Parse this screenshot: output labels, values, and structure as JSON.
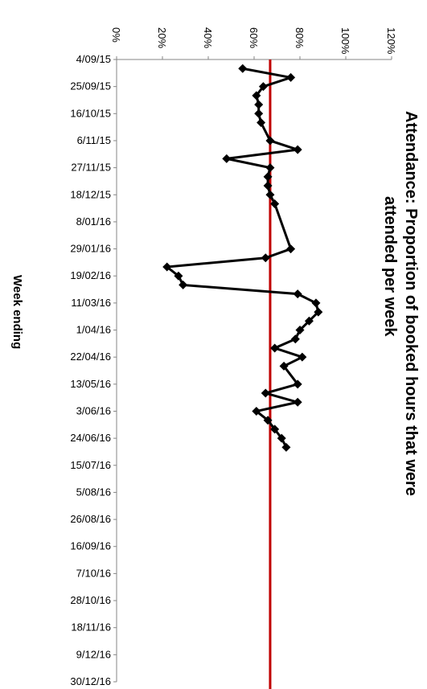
{
  "chart_data": {
    "type": "line",
    "orientation": "rotated-90-clockwise",
    "title_lines": [
      "Attendance:  Proportion of booked hours that were",
      "attended per week"
    ],
    "xlabel": "Week ending",
    "ylabel": "",
    "x_tick_labels": [
      "4/09/15",
      "25/09/15",
      "16/10/15",
      "6/11/15",
      "27/11/15",
      "18/12/15",
      "8/01/16",
      "29/01/16",
      "19/02/16",
      "11/03/16",
      "1/04/16",
      "22/04/16",
      "13/05/16",
      "3/06/16",
      "24/06/16",
      "15/07/16",
      "5/08/16",
      "26/08/16",
      "16/09/16",
      "7/10/16",
      "28/10/16",
      "18/11/16",
      "9/12/16",
      "30/12/16"
    ],
    "y_tick_labels": [
      "0%",
      "20%",
      "40%",
      "60%",
      "80%",
      "100%",
      "120%"
    ],
    "ylim": [
      0,
      1.2
    ],
    "xlim_weeks": [
      0,
      69
    ],
    "series": [
      {
        "color": "#000000",
        "marker": "diamond",
        "points": [
          {
            "date": "11/09/15",
            "value": 0.55
          },
          {
            "date": "18/09/15",
            "value": 0.76
          },
          {
            "date": "25/09/15",
            "value": 0.64
          },
          {
            "date": "2/10/15",
            "value": 0.61
          },
          {
            "date": "9/10/15",
            "value": 0.62
          },
          {
            "date": "16/10/15",
            "value": 0.62
          },
          {
            "date": "23/10/15",
            "value": 0.63
          },
          {
            "date": "6/11/15",
            "value": 0.67
          },
          {
            "date": "13/11/15",
            "value": 0.79
          },
          {
            "date": "20/11/15",
            "value": 0.48
          },
          {
            "date": "27/11/15",
            "value": 0.67
          },
          {
            "date": "4/12/15",
            "value": 0.66
          },
          {
            "date": "11/12/15",
            "value": 0.66
          },
          {
            "date": "18/12/15",
            "value": 0.67
          },
          {
            "date": "25/12/15",
            "value": 0.69
          },
          {
            "date": "29/01/16",
            "value": 0.76
          },
          {
            "date": "5/02/16",
            "value": 0.65
          },
          {
            "date": "12/02/16",
            "value": 0.22
          },
          {
            "date": "19/02/16",
            "value": 0.27
          },
          {
            "date": "26/02/16",
            "value": 0.29
          },
          {
            "date": "4/03/16",
            "value": 0.79
          },
          {
            "date": "11/03/16",
            "value": 0.87
          },
          {
            "date": "18/03/16",
            "value": 0.88
          },
          {
            "date": "25/03/16",
            "value": 0.84
          },
          {
            "date": "1/04/16",
            "value": 0.8
          },
          {
            "date": "8/04/16",
            "value": 0.78
          },
          {
            "date": "15/04/16",
            "value": 0.69
          },
          {
            "date": "22/04/16",
            "value": 0.81
          },
          {
            "date": "29/04/16",
            "value": 0.73
          },
          {
            "date": "13/05/16",
            "value": 0.79
          },
          {
            "date": "20/05/16",
            "value": 0.65
          },
          {
            "date": "27/05/16",
            "value": 0.79
          },
          {
            "date": "3/06/16",
            "value": 0.61
          },
          {
            "date": "10/06/16",
            "value": 0.66
          },
          {
            "date": "17/06/16",
            "value": 0.69
          },
          {
            "date": "24/06/16",
            "value": 0.72
          },
          {
            "date": "1/07/16",
            "value": 0.74
          }
        ]
      }
    ],
    "reference_line": {
      "value": 0.67,
      "color": "#c00000"
    },
    "grid": false,
    "legend": "none"
  }
}
